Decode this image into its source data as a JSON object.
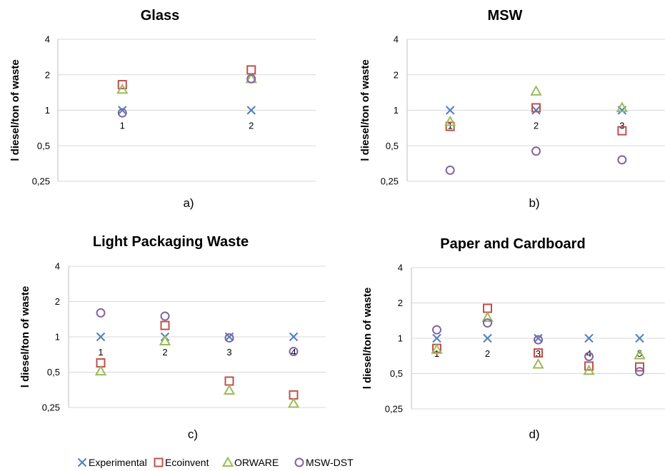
{
  "figure": {
    "legend": [
      {
        "name": "Experimental",
        "color": "#4f81bd",
        "marker": "x"
      },
      {
        "name": "Ecoinvent",
        "color": "#c0504d",
        "marker": "square"
      },
      {
        "name": "ORWARE",
        "color": "#9bbb59",
        "marker": "triangle"
      },
      {
        "name": "MSW-DST",
        "color": "#8064a2",
        "marker": "circle"
      }
    ]
  },
  "chart_data": [
    {
      "type": "scatter",
      "title": "Glass",
      "panel_label": "a)",
      "ylabel": "l diesel/ton of waste",
      "yscale": "log2",
      "ylim": [
        0.25,
        4
      ],
      "yticks": [
        "0,25",
        "0,5",
        "1",
        "2",
        "4"
      ],
      "categories": [
        "1",
        "2"
      ],
      "grid": true,
      "series": [
        {
          "name": "Experimental",
          "values": [
            1.0,
            1.0
          ]
        },
        {
          "name": "Ecoinvent",
          "values": [
            1.65,
            2.2
          ]
        },
        {
          "name": "ORWARE",
          "values": [
            1.5,
            1.85
          ]
        },
        {
          "name": "MSW-DST",
          "values": [
            0.95,
            1.85
          ]
        }
      ]
    },
    {
      "type": "scatter",
      "title": "MSW",
      "panel_label": "b)",
      "ylabel": "l diesel/ton of waste",
      "yscale": "log2",
      "ylim": [
        0.25,
        4
      ],
      "yticks": [
        "0,25",
        "0,5",
        "1",
        "2",
        "4"
      ],
      "categories": [
        "1",
        "2",
        "3"
      ],
      "grid": true,
      "series": [
        {
          "name": "Experimental",
          "values": [
            1.0,
            1.0,
            1.0
          ]
        },
        {
          "name": "Ecoinvent",
          "values": [
            0.73,
            1.05,
            0.67
          ]
        },
        {
          "name": "ORWARE",
          "values": [
            0.8,
            1.45,
            1.05
          ]
        },
        {
          "name": "MSW-DST",
          "values": [
            0.31,
            0.45,
            0.38
          ]
        }
      ]
    },
    {
      "type": "scatter",
      "title": "Light Packaging Waste",
      "panel_label": "c)",
      "ylabel": "l diesel/ton of waste",
      "yscale": "log2",
      "ylim": [
        0.25,
        4
      ],
      "yticks": [
        "0,25",
        "0,5",
        "1",
        "2",
        "4"
      ],
      "categories": [
        "1",
        "2",
        "3",
        "4"
      ],
      "grid": true,
      "series": [
        {
          "name": "Experimental",
          "values": [
            1.0,
            1.0,
            1.0,
            1.0
          ]
        },
        {
          "name": "Ecoinvent",
          "values": [
            0.6,
            1.25,
            0.42,
            0.32
          ]
        },
        {
          "name": "ORWARE",
          "values": [
            0.51,
            0.92,
            0.35,
            0.27
          ]
        },
        {
          "name": "MSW-DST",
          "values": [
            1.6,
            1.5,
            0.98,
            0.75
          ]
        }
      ]
    },
    {
      "type": "scatter",
      "title": "Paper and Cardboard",
      "panel_label": "d)",
      "ylabel": "l diesel/ton of waste",
      "yscale": "log2",
      "ylim": [
        0.25,
        4
      ],
      "yticks": [
        "0,25",
        "0,5",
        "1",
        "2",
        "4"
      ],
      "categories": [
        "1",
        "2",
        "3",
        "4",
        "5"
      ],
      "grid": true,
      "series": [
        {
          "name": "Experimental",
          "values": [
            1.0,
            1.0,
            1.0,
            1.0,
            1.0
          ]
        },
        {
          "name": "Ecoinvent",
          "values": [
            0.82,
            1.8,
            0.75,
            0.58,
            0.57
          ]
        },
        {
          "name": "ORWARE",
          "values": [
            0.8,
            1.5,
            0.6,
            0.53,
            0.72
          ]
        },
        {
          "name": "MSW-DST",
          "values": [
            1.18,
            1.35,
            0.97,
            0.7,
            0.52
          ]
        }
      ]
    }
  ]
}
